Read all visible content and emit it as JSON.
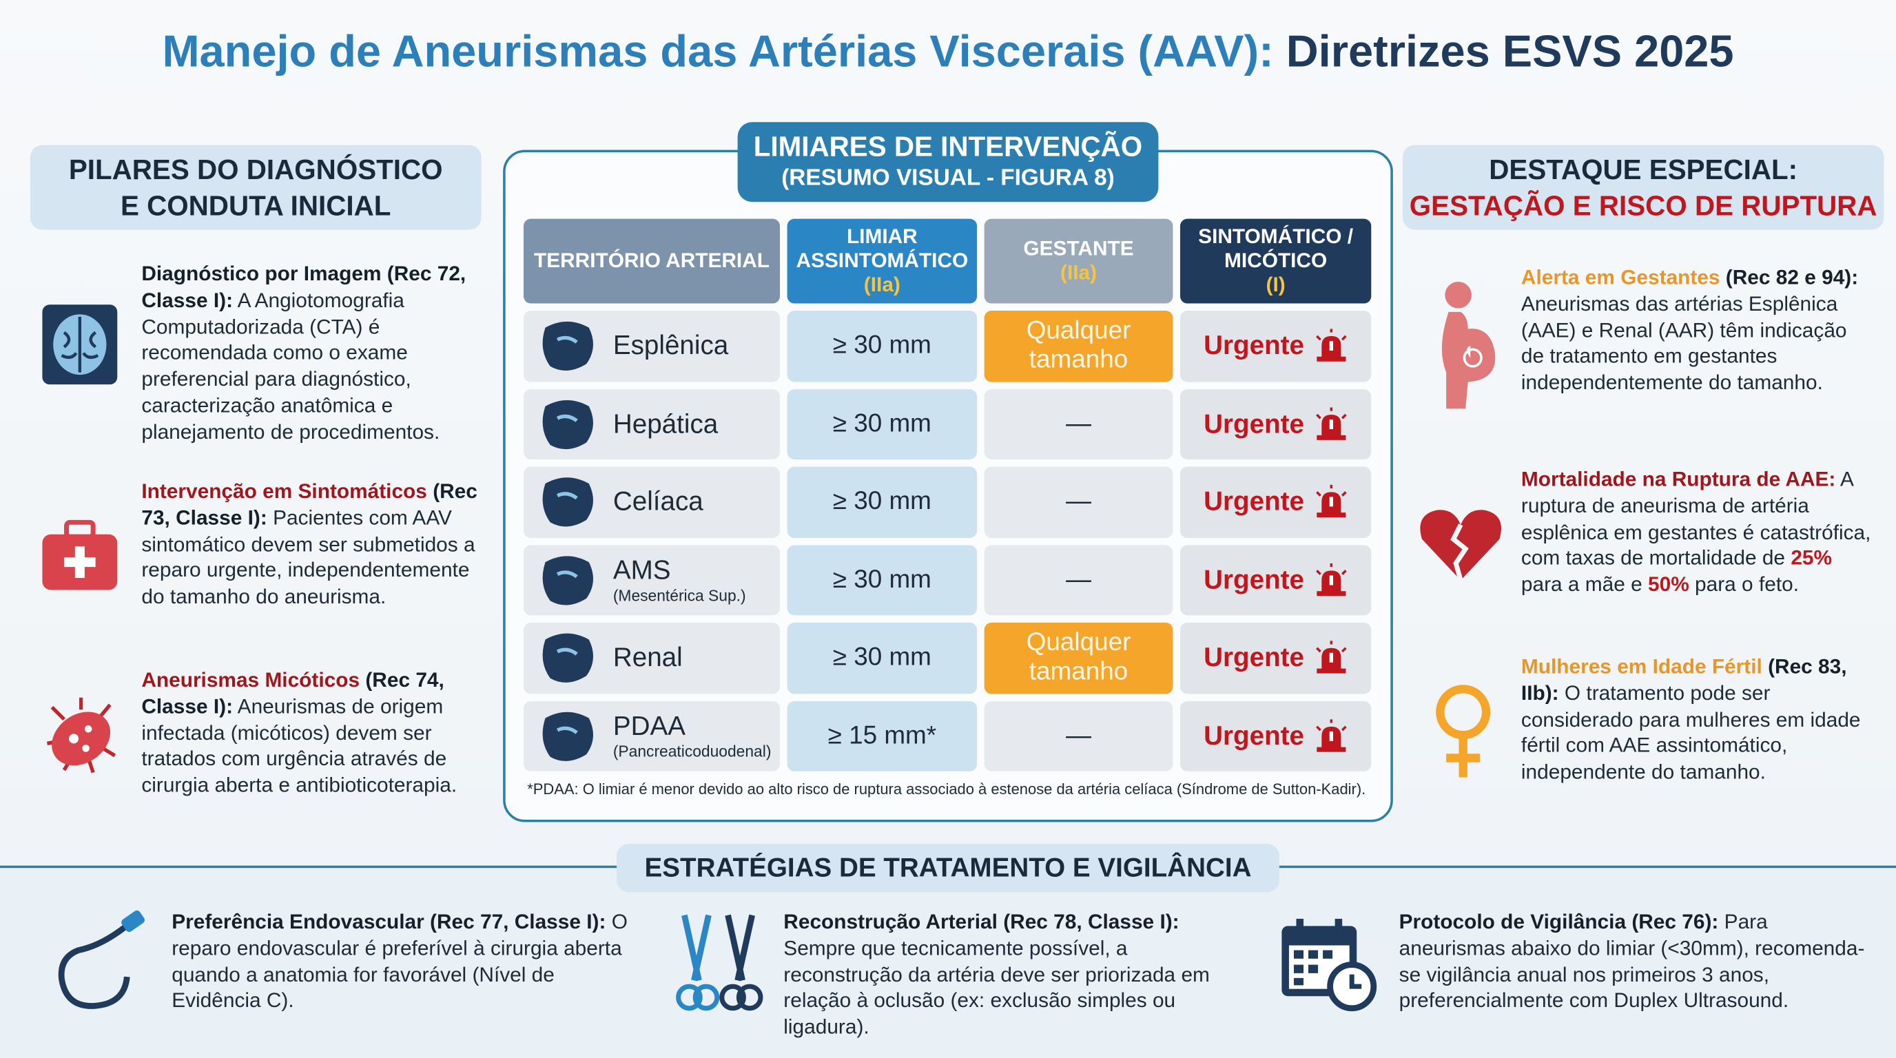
{
  "title": {
    "main": "Manejo de Aneurismas das Artérias Viscerais (AAV):",
    "accent": "Diretrizes ESVS 2025"
  },
  "left_panel": {
    "heading": [
      "PILARES DO DIAGNÓSTICO",
      "E CONDUTA INICIAL"
    ],
    "items": [
      {
        "ref": "Diagnóstico por Imagem (Rec 72, Classe I):",
        "body": [
          "A Angiotomografia Computadorizada (CTA) é recomendada como o exame preferencial para diagnóstico, caracterização anatômica e planejamento de procedimentos."
        ]
      },
      {
        "title": "Intervenção em Sintomáticos",
        "ref": "(Rec 73, Classe I):",
        "body": [
          "Pacientes com AAV sintomático devem ser submetidos a reparo urgente, independentemente do tamanho do aneurisma."
        ]
      },
      {
        "title": "Aneurismas Micóticos",
        "ref": "(Rec 74, Classe I):",
        "body": [
          "Aneurismas de origem infectada (micóticos) devem ser tratados com urgência através de cirurgia aberta e antibioticoterapia."
        ]
      }
    ]
  },
  "center_panel": {
    "heading": "LIMIARES DE INTERVENÇÃO",
    "subheading": "(RESUMO VISUAL - FIGURA 8)",
    "columns": [
      {
        "label": "TERRITÓRIO ARTERIAL"
      },
      {
        "label": "LIMIAR ASSINTOMÁTICO",
        "sub": "(IIa)"
      },
      {
        "label": "GESTANTE",
        "sub": "(IIa)"
      },
      {
        "label": "SINTOMÁTICO / MICÓTICO",
        "sub": "(I)"
      }
    ],
    "rows": [
      {
        "territory": "Esplênica",
        "threshold": "≥ 30 mm",
        "pregnant": "Qualquer tamanho",
        "symptomatic": "Urgente"
      },
      {
        "territory": "Hepática",
        "threshold": "≥ 30 mm",
        "pregnant": "—",
        "symptomatic": "Urgente"
      },
      {
        "territory": "Celíaca",
        "threshold": "≥ 30 mm",
        "pregnant": "—",
        "symptomatic": "Urgente"
      },
      {
        "territory": "AMS",
        "detail": "(Mesentérica Sup.)",
        "threshold": "≥ 30 mm",
        "pregnant": "—",
        "symptomatic": "Urgente"
      },
      {
        "territory": "Renal",
        "threshold": "≥ 30 mm",
        "pregnant": "Qualquer tamanho",
        "symptomatic": "Urgente"
      },
      {
        "territory": "PDAA",
        "detail": "(Pancreaticoduodenal)",
        "threshold": "≥ 15 mm*",
        "pregnant": "—",
        "symptomatic": "Urgente"
      }
    ],
    "footnote": "*PDAA: O limiar é menor devido ao alto risco de ruptura associado à estenose da artéria celíaca (Síndrome de Sutton-Kadir)."
  },
  "right_panel": {
    "heading": [
      "DESTAQUE ESPECIAL:",
      "GESTAÇÃO E RISCO DE RUPTURA"
    ],
    "items": [
      {
        "title": "Alerta em Gestantes",
        "ref": "(Rec 82 e 94):",
        "body": [
          "Aneurismas das artérias Esplênica (AAE) e Renal (AAR) têm indicação de tratamento em gestantes independentemente do tamanho."
        ]
      },
      {
        "title": "Mortalidade na Ruptura de AAE:",
        "body": [
          "A ruptura de aneurisma de artéria esplênica em gestantes é catastrófica, com taxas de mortalidade de ",
          "25%",
          " para a mãe e ",
          "50%",
          " para o feto."
        ]
      },
      {
        "title": "Mulheres em Idade Fértil",
        "ref": "(Rec 83, IIb):",
        "body": [
          "O tratamento pode ser considerado para mulheres em idade fértil com AAE assintomático, independente do tamanho."
        ]
      }
    ]
  },
  "bottom_panel": {
    "heading": "ESTRATÉGIAS DE TRATAMENTO E VIGILÂNCIA",
    "items": [
      {
        "ref": "Preferência Endovascular (Rec 77, Classe I):",
        "body": [
          "O reparo endovascular é preferível à cirurgia aberta quando a anatomia for favorável (Nível de Evidência C)."
        ]
      },
      {
        "ref": "Reconstrução Arterial (Rec 78, Classe I):",
        "body": [
          "Sempre que tecnicamente possível, a reconstrução da artéria deve ser priorizada em relação à oclusão (ex: exclusão simples ou ligadura)."
        ]
      },
      {
        "ref": "Protocolo de Vigilância (Rec 76):",
        "body": [
          "Para aneurismas abaixo do limiar (<30mm), recomenda-se vigilância anual nos primeiros 3 anos, preferencialmente com Duplex Ultrasound."
        ]
      }
    ]
  }
}
